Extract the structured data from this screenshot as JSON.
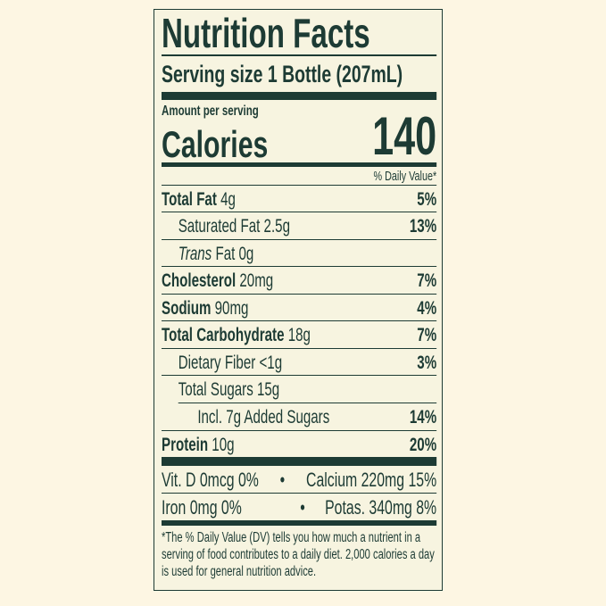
{
  "title": "Nutrition Facts",
  "serving_size": "Serving size 1 Bottle (207mL)",
  "amount_per_serving": "Amount per serving",
  "calories_label": "Calories",
  "calories_value": "140",
  "daily_value_header": "% Daily Value*",
  "nutrients": [
    {
      "name": "Total Fat",
      "amount": "4g",
      "dv": "5%"
    },
    {
      "name": "Saturated Fat",
      "amount": "2.5g",
      "dv": "13%"
    },
    {
      "name": "Trans",
      "amount": "Fat 0g",
      "dv": ""
    },
    {
      "name": "Cholesterol",
      "amount": "20mg",
      "dv": "7%"
    },
    {
      "name": "Sodium",
      "amount": "90mg",
      "dv": "4%"
    },
    {
      "name": "Total Carbohydrate",
      "amount": "18g",
      "dv": "7%"
    },
    {
      "name": "Dietary Fiber",
      "amount": "<1g",
      "dv": "3%"
    },
    {
      "name": "Total Sugars",
      "amount": "15g",
      "dv": ""
    },
    {
      "name": "Incl. 7g Added Sugars",
      "amount": "",
      "dv": "14%"
    },
    {
      "name": "Protein",
      "amount": "10g",
      "dv": "20%"
    }
  ],
  "vitamins": [
    {
      "left": "Vit. D 0mcg 0%",
      "sep": "•",
      "right": "Calcium 220mg 15%"
    },
    {
      "left": "Iron 0mg 0%",
      "sep": "•",
      "right": "Potas. 340mg 8%"
    }
  ],
  "footnote": "*The % Daily Value (DV) tells you how much a nutrient in a serving of food contributes to a daily diet. 2,000 calories a day is used for general nutrition advice.",
  "colors": {
    "ink": "#1d3b34",
    "label_bg": "#f7f4e0",
    "page_bg": "#fdf6e3"
  }
}
